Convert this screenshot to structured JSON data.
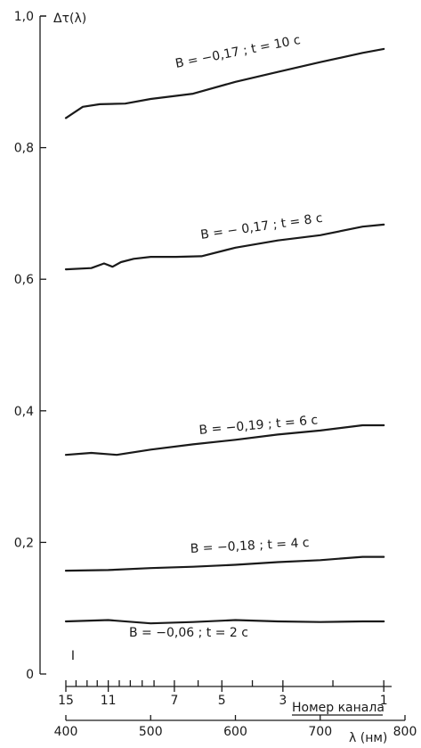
{
  "chart_data": {
    "type": "line",
    "ylabel": "Δτ(λ)",
    "ylim": [
      0,
      1.0
    ],
    "y_ticks": [
      {
        "value": 0,
        "label": "0"
      },
      {
        "value": 0.2,
        "label": "0,2"
      },
      {
        "value": 0.4,
        "label": "0,4"
      },
      {
        "value": 0.6,
        "label": "0,6"
      },
      {
        "value": 0.8,
        "label": "0,8"
      },
      {
        "value": 1.0,
        "label": "1,0"
      }
    ],
    "xlabel": "λ (нм)",
    "xlim": [
      400,
      800
    ],
    "x_ticks": [
      {
        "value": 400,
        "label": "400"
      },
      {
        "value": 500,
        "label": "500"
      },
      {
        "value": 600,
        "label": "600"
      },
      {
        "value": 700,
        "label": "700"
      },
      {
        "value": 800,
        "label": "800"
      }
    ],
    "channel_axis_label": "Номер канала",
    "channel_ticks": [
      {
        "label": "15",
        "wavelength": 400
      },
      {
        "label": "11",
        "wavelength": 450
      },
      {
        "label": "7",
        "wavelength": 528
      },
      {
        "label": "5",
        "wavelength": 584
      },
      {
        "label": "3",
        "wavelength": 656
      },
      {
        "label": "1",
        "wavelength": 775
      }
    ],
    "channel_minor_wavelengths": [
      400,
      412,
      425,
      437,
      450,
      463,
      476,
      490,
      504,
      528,
      556,
      584,
      620,
      656,
      715,
      775
    ],
    "error_bar_label": "I",
    "series": [
      {
        "label": "B = −0,17 ; t = 10 c",
        "x": [
          400,
          420,
          440,
          470,
          500,
          550,
          600,
          650,
          700,
          750,
          775
        ],
        "y": [
          0.845,
          0.862,
          0.866,
          0.867,
          0.874,
          0.882,
          0.9,
          0.915,
          0.93,
          0.944,
          0.95
        ]
      },
      {
        "label": "B = − 0,17 ; t = 8 c",
        "x": [
          400,
          430,
          445,
          455,
          465,
          480,
          500,
          530,
          560,
          600,
          650,
          700,
          750,
          775
        ],
        "y": [
          0.615,
          0.617,
          0.624,
          0.619,
          0.626,
          0.631,
          0.634,
          0.634,
          0.635,
          0.648,
          0.659,
          0.667,
          0.68,
          0.683
        ]
      },
      {
        "label": "B = −0,19 ; t = 6 c",
        "x": [
          400,
          430,
          460,
          500,
          550,
          600,
          650,
          700,
          750,
          775
        ],
        "y": [
          0.333,
          0.336,
          0.333,
          0.341,
          0.349,
          0.356,
          0.364,
          0.37,
          0.378,
          0.378
        ]
      },
      {
        "label": "B = −0,18 ; t = 4 c",
        "x": [
          400,
          450,
          500,
          550,
          600,
          650,
          700,
          750,
          775
        ],
        "y": [
          0.157,
          0.158,
          0.161,
          0.163,
          0.166,
          0.17,
          0.173,
          0.178,
          0.178
        ]
      },
      {
        "label": "B = −0,06 ; t = 2 c",
        "x": [
          400,
          450,
          500,
          550,
          600,
          650,
          700,
          750,
          775
        ],
        "y": [
          0.08,
          0.082,
          0.077,
          0.079,
          0.082,
          0.08,
          0.079,
          0.08,
          0.08
        ]
      }
    ]
  }
}
